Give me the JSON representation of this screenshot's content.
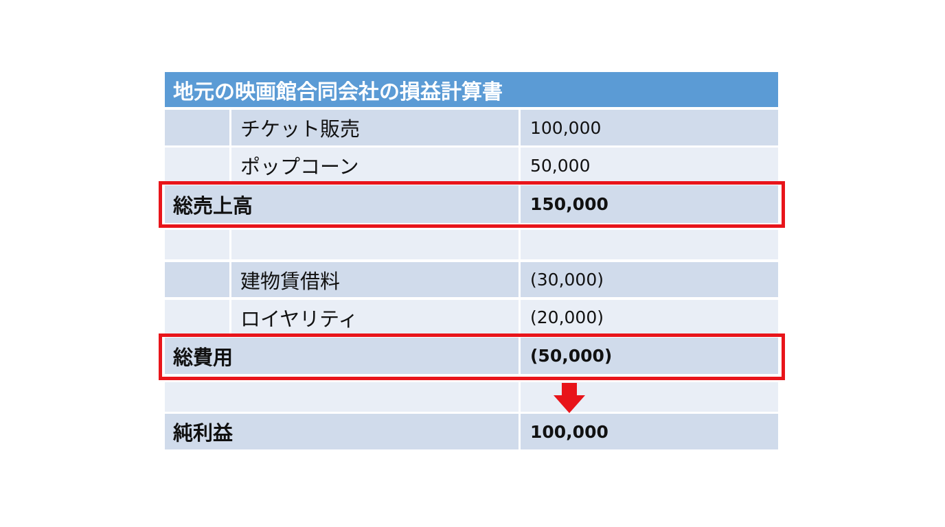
{
  "table": {
    "title": "地元の映画館合同会社の損益計算書",
    "revenue": {
      "items": [
        {
          "label": "チケット販売",
          "amount": "100,000"
        },
        {
          "label": "ポップコーン",
          "amount": "50,000"
        }
      ],
      "total": {
        "label": "総売上高",
        "amount": "150,000"
      }
    },
    "expenses": {
      "items": [
        {
          "label": "建物賃借料",
          "amount": "(30,000)"
        },
        {
          "label": "ロイヤリティ",
          "amount": "(20,000)"
        }
      ],
      "total": {
        "label": "総費用",
        "amount": "(50,000)"
      }
    },
    "net_income": {
      "label": "純利益",
      "amount": "100,000"
    }
  }
}
